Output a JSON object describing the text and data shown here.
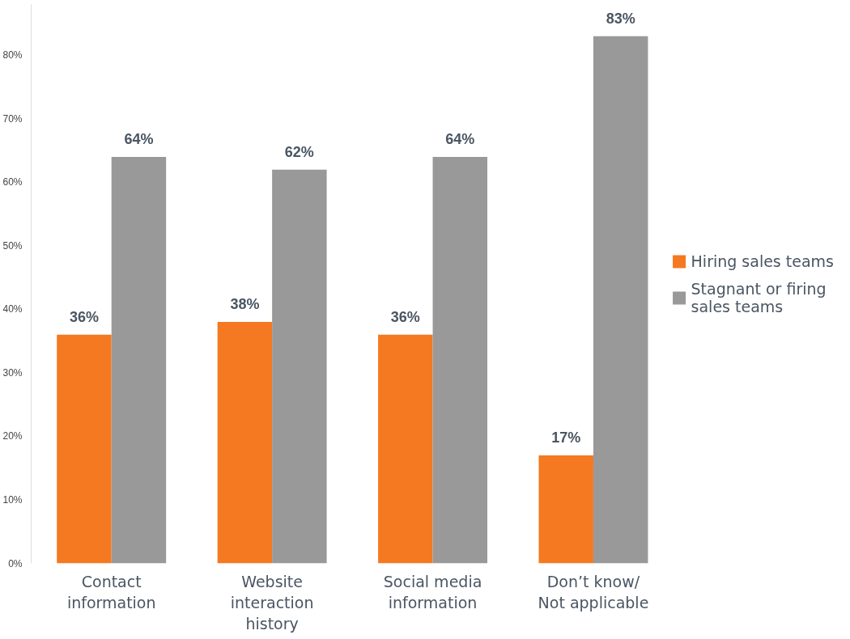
{
  "chart_data": {
    "type": "bar",
    "categories": [
      "Contact information",
      "Website interaction history",
      "Social media information",
      "Don’t know/ Not applicable"
    ],
    "series": [
      {
        "name": "Hiring sales teams",
        "color": "#f47920",
        "values": [
          36,
          38,
          36,
          17
        ],
        "value_labels": [
          "36%",
          "38%",
          "36%",
          "17%"
        ]
      },
      {
        "name": "Stagnant or firing sales teams",
        "color": "#999999",
        "values": [
          64,
          62,
          64,
          83
        ],
        "value_labels": [
          "64%",
          "62%",
          "64%",
          "83%"
        ]
      }
    ],
    "ylim": [
      0,
      88
    ],
    "yticks": [
      {
        "value": 0,
        "label": "0%"
      },
      {
        "value": 10,
        "label": "10%"
      },
      {
        "value": 20,
        "label": "20%"
      },
      {
        "value": 30,
        "label": "30%"
      },
      {
        "value": 40,
        "label": "40%"
      },
      {
        "value": 50,
        "label": "50%"
      },
      {
        "value": 60,
        "label": "60%"
      },
      {
        "value": 70,
        "label": "70%"
      },
      {
        "value": 80,
        "label": "80%"
      }
    ],
    "grid": false,
    "legend": "right"
  }
}
